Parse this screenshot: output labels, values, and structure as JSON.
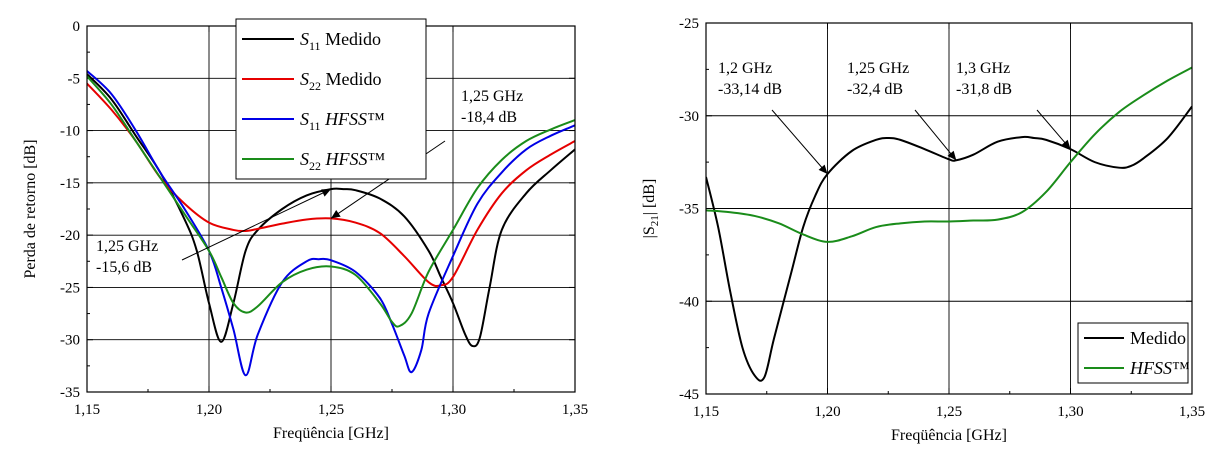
{
  "chart_data": [
    {
      "type": "line",
      "xlabel": "Freqüência [GHz]",
      "ylabel": "Perda de retorno [dB]",
      "xlim": [
        1.15,
        1.35
      ],
      "ylim": [
        -35,
        0
      ],
      "xticks": [
        1.15,
        1.2,
        1.25,
        1.3,
        1.35
      ],
      "xtick_labels": [
        "1,15",
        "1,20",
        "1,25",
        "1,30",
        "1,35"
      ],
      "yticks": [
        0,
        -5,
        -10,
        -15,
        -20,
        -25,
        -30,
        -35
      ],
      "ytick_labels": [
        "0",
        "-5",
        "-10",
        "-15",
        "-20",
        "-25",
        "-30",
        "-35"
      ],
      "grid": true,
      "legend_position": "top-center",
      "series": [
        {
          "name": "S11 Medido",
          "legend_base": "S",
          "legend_sub": "11",
          "legend_rest": " Medido",
          "legend_italic_rest": false,
          "color": "#000000",
          "x": [
            1.15,
            1.16,
            1.17,
            1.18,
            1.19,
            1.195,
            1.2,
            1.205,
            1.21,
            1.215,
            1.22,
            1.23,
            1.24,
            1.25,
            1.255,
            1.26,
            1.27,
            1.28,
            1.29,
            1.295,
            1.3,
            1.305,
            1.308,
            1.311,
            1.315,
            1.32,
            1.33,
            1.34,
            1.35
          ],
          "y": [
            -4.6,
            -7.0,
            -10.5,
            -14.0,
            -18.5,
            -21.5,
            -26.5,
            -30.2,
            -26.5,
            -21.5,
            -19.5,
            -17.5,
            -16.2,
            -15.6,
            -15.6,
            -15.7,
            -16.5,
            -18.2,
            -21.5,
            -24.0,
            -26.5,
            -29.5,
            -30.6,
            -29.8,
            -25.0,
            -19.5,
            -16.0,
            -13.8,
            -11.8
          ]
        },
        {
          "name": "S22 Medido",
          "legend_base": "S",
          "legend_sub": "22",
          "legend_rest": " Medido",
          "legend_italic_rest": false,
          "color": "#e60000",
          "x": [
            1.15,
            1.16,
            1.17,
            1.18,
            1.19,
            1.2,
            1.21,
            1.215,
            1.22,
            1.23,
            1.24,
            1.25,
            1.26,
            1.27,
            1.28,
            1.29,
            1.295,
            1.3,
            1.31,
            1.32,
            1.33,
            1.34,
            1.35
          ],
          "y": [
            -5.5,
            -8.0,
            -11.0,
            -14.5,
            -17.0,
            -18.8,
            -19.5,
            -19.6,
            -19.4,
            -18.9,
            -18.5,
            -18.4,
            -18.8,
            -19.8,
            -22.0,
            -24.5,
            -24.8,
            -24.0,
            -19.5,
            -16.0,
            -13.8,
            -12.3,
            -11.0
          ]
        },
        {
          "name": "S11 HFSS™",
          "legend_base": "S",
          "legend_sub": "11",
          "legend_rest": " HFSS",
          "legend_tm": "™",
          "legend_italic_rest": true,
          "color": "#0000e6",
          "x": [
            1.15,
            1.16,
            1.17,
            1.18,
            1.19,
            1.2,
            1.205,
            1.21,
            1.215,
            1.22,
            1.23,
            1.24,
            1.245,
            1.25,
            1.26,
            1.27,
            1.275,
            1.28,
            1.283,
            1.287,
            1.29,
            1.3,
            1.31,
            1.32,
            1.33,
            1.34,
            1.35
          ],
          "y": [
            -4.3,
            -6.5,
            -10.0,
            -14.0,
            -17.5,
            -21.5,
            -25.0,
            -29.0,
            -33.4,
            -29.5,
            -24.5,
            -22.5,
            -22.3,
            -22.4,
            -23.5,
            -26.0,
            -28.5,
            -31.5,
            -33.1,
            -31.0,
            -27.5,
            -22.0,
            -17.0,
            -14.0,
            -11.8,
            -10.5,
            -9.5
          ]
        },
        {
          "name": "S22 HFSS™",
          "legend_base": "S",
          "legend_sub": "22",
          "legend_rest": " HFSS",
          "legend_tm": "™",
          "legend_italic_rest": true,
          "color": "#1a8c1a",
          "x": [
            1.15,
            1.16,
            1.17,
            1.18,
            1.19,
            1.2,
            1.205,
            1.21,
            1.215,
            1.22,
            1.23,
            1.24,
            1.25,
            1.26,
            1.27,
            1.275,
            1.278,
            1.283,
            1.29,
            1.3,
            1.31,
            1.32,
            1.33,
            1.34,
            1.35
          ],
          "y": [
            -4.8,
            -7.5,
            -11.0,
            -14.5,
            -18.0,
            -21.5,
            -24.0,
            -26.5,
            -27.4,
            -26.8,
            -24.5,
            -23.3,
            -23.0,
            -23.8,
            -26.5,
            -28.3,
            -28.7,
            -27.5,
            -23.5,
            -19.5,
            -15.5,
            -12.8,
            -11.0,
            -9.9,
            -9.0
          ]
        }
      ],
      "annotations": [
        {
          "lines": [
            "1,25 GHz",
            "-18,4 dB"
          ],
          "point": [
            1.25,
            -18.4
          ]
        },
        {
          "lines": [
            "1,25 GHz",
            "-15,6 dB"
          ],
          "point": [
            1.25,
            -15.6
          ]
        }
      ]
    },
    {
      "type": "line",
      "xlabel": "Freqüência [GHz]",
      "ylabel_base": "|S",
      "ylabel_sub": "21",
      "ylabel_rest": "| [dB]",
      "xlim": [
        1.15,
        1.35
      ],
      "ylim": [
        -45,
        -25
      ],
      "xticks": [
        1.15,
        1.2,
        1.25,
        1.3,
        1.35
      ],
      "xtick_labels": [
        "1,15",
        "1,20",
        "1,25",
        "1,30",
        "1,35"
      ],
      "yticks": [
        -25,
        -30,
        -35,
        -40,
        -45
      ],
      "ytick_labels": [
        "-25",
        "-30",
        "-35",
        "-40",
        "-45"
      ],
      "grid": true,
      "legend_position": "bottom-right",
      "series": [
        {
          "name": "Medido",
          "legend_italic": false,
          "color": "#000000",
          "x": [
            1.15,
            1.155,
            1.16,
            1.165,
            1.17,
            1.174,
            1.178,
            1.185,
            1.19,
            1.195,
            1.2,
            1.21,
            1.22,
            1.225,
            1.23,
            1.24,
            1.25,
            1.253,
            1.26,
            1.27,
            1.28,
            1.285,
            1.29,
            1.3,
            1.31,
            1.32,
            1.325,
            1.33,
            1.34,
            1.35
          ],
          "y": [
            -33.3,
            -36.0,
            -39.5,
            -42.5,
            -44.0,
            -44.1,
            -42.0,
            -38.5,
            -36.0,
            -34.3,
            -33.14,
            -31.9,
            -31.3,
            -31.2,
            -31.3,
            -31.8,
            -32.35,
            -32.4,
            -32.1,
            -31.4,
            -31.15,
            -31.2,
            -31.3,
            -31.8,
            -32.5,
            -32.8,
            -32.7,
            -32.3,
            -31.2,
            -29.5
          ]
        },
        {
          "name": "HFSS™",
          "legend_base": "HFSS",
          "legend_tm": "™",
          "legend_italic": true,
          "color": "#1a8c1a",
          "x": [
            1.15,
            1.16,
            1.17,
            1.18,
            1.19,
            1.2,
            1.21,
            1.22,
            1.23,
            1.24,
            1.25,
            1.26,
            1.27,
            1.28,
            1.29,
            1.3,
            1.31,
            1.32,
            1.33,
            1.34,
            1.35
          ],
          "y": [
            -35.1,
            -35.2,
            -35.4,
            -35.8,
            -36.4,
            -36.8,
            -36.5,
            -36.0,
            -35.8,
            -35.7,
            -35.7,
            -35.65,
            -35.6,
            -35.2,
            -34.1,
            -32.5,
            -31.0,
            -29.8,
            -28.9,
            -28.1,
            -27.4
          ]
        }
      ],
      "annotations": [
        {
          "lines": [
            "1,2 GHz",
            "-33,14 dB"
          ],
          "point": [
            1.2,
            -33.14
          ]
        },
        {
          "lines": [
            "1,25 GHz",
            "-32,4 dB"
          ],
          "point": [
            1.253,
            -32.4
          ]
        },
        {
          "lines": [
            "1,3 GHz",
            "-31,8 dB"
          ],
          "point": [
            1.3,
            -31.8
          ]
        }
      ]
    }
  ]
}
